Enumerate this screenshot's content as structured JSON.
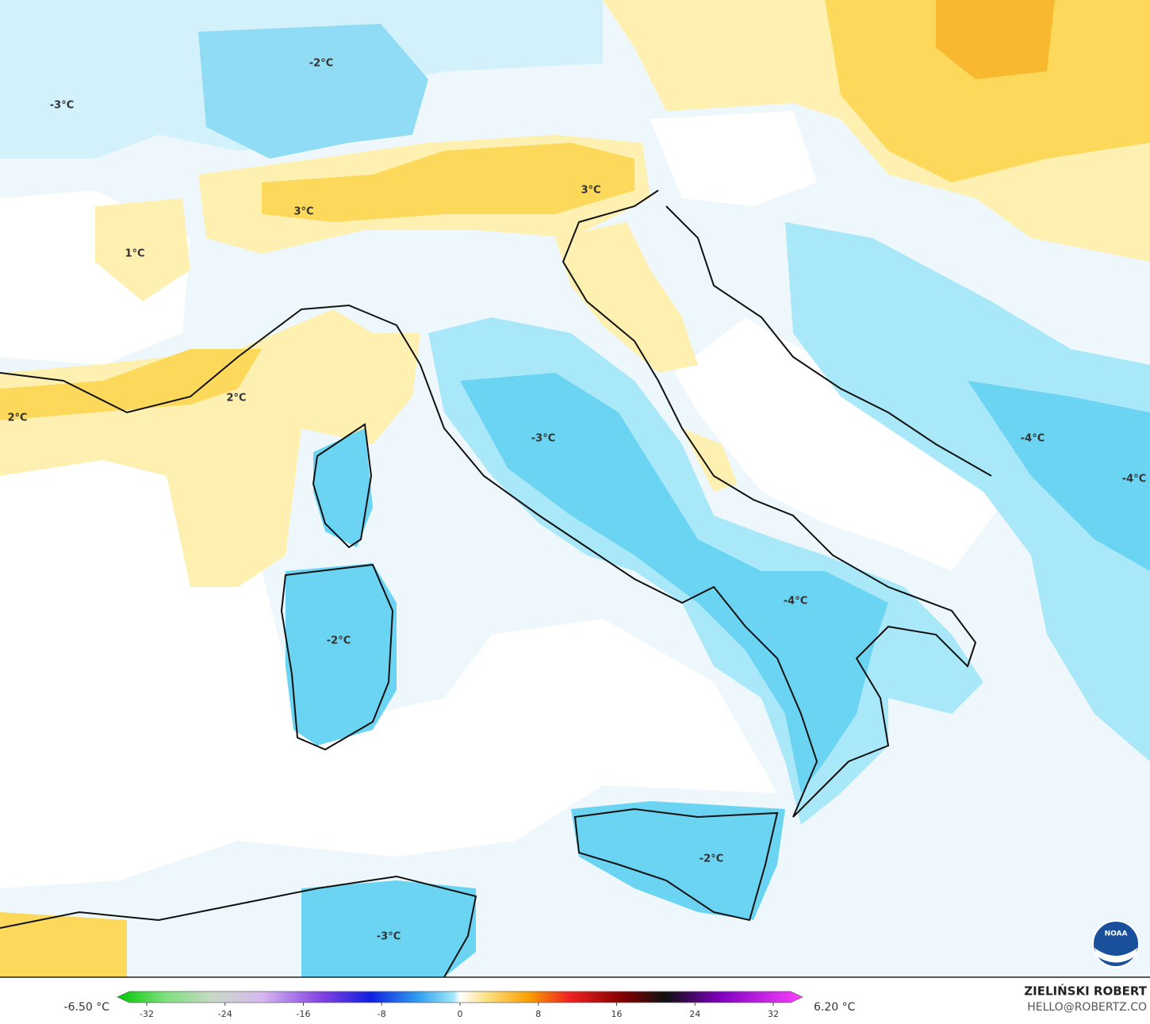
{
  "map": {
    "labels": [
      "-2°C",
      "-3°C",
      "3°C",
      "3°C",
      "1°C",
      "2°C",
      "2°C",
      "-3°C",
      "-4°C",
      "-4°C",
      "-4°C",
      "-2°C",
      "-2°C",
      "-3°C"
    ]
  },
  "colorbar": {
    "min_label": "-6.50 °C",
    "max_label": "6.20 °C",
    "ticks": [
      -32,
      -24,
      -16,
      -8,
      0,
      8,
      16,
      24,
      32
    ]
  },
  "credit": {
    "author": "ZIELIŃSKI ROBERT",
    "email": "HELLO@ROBERTZ.CO"
  },
  "logo": "NOAA"
}
